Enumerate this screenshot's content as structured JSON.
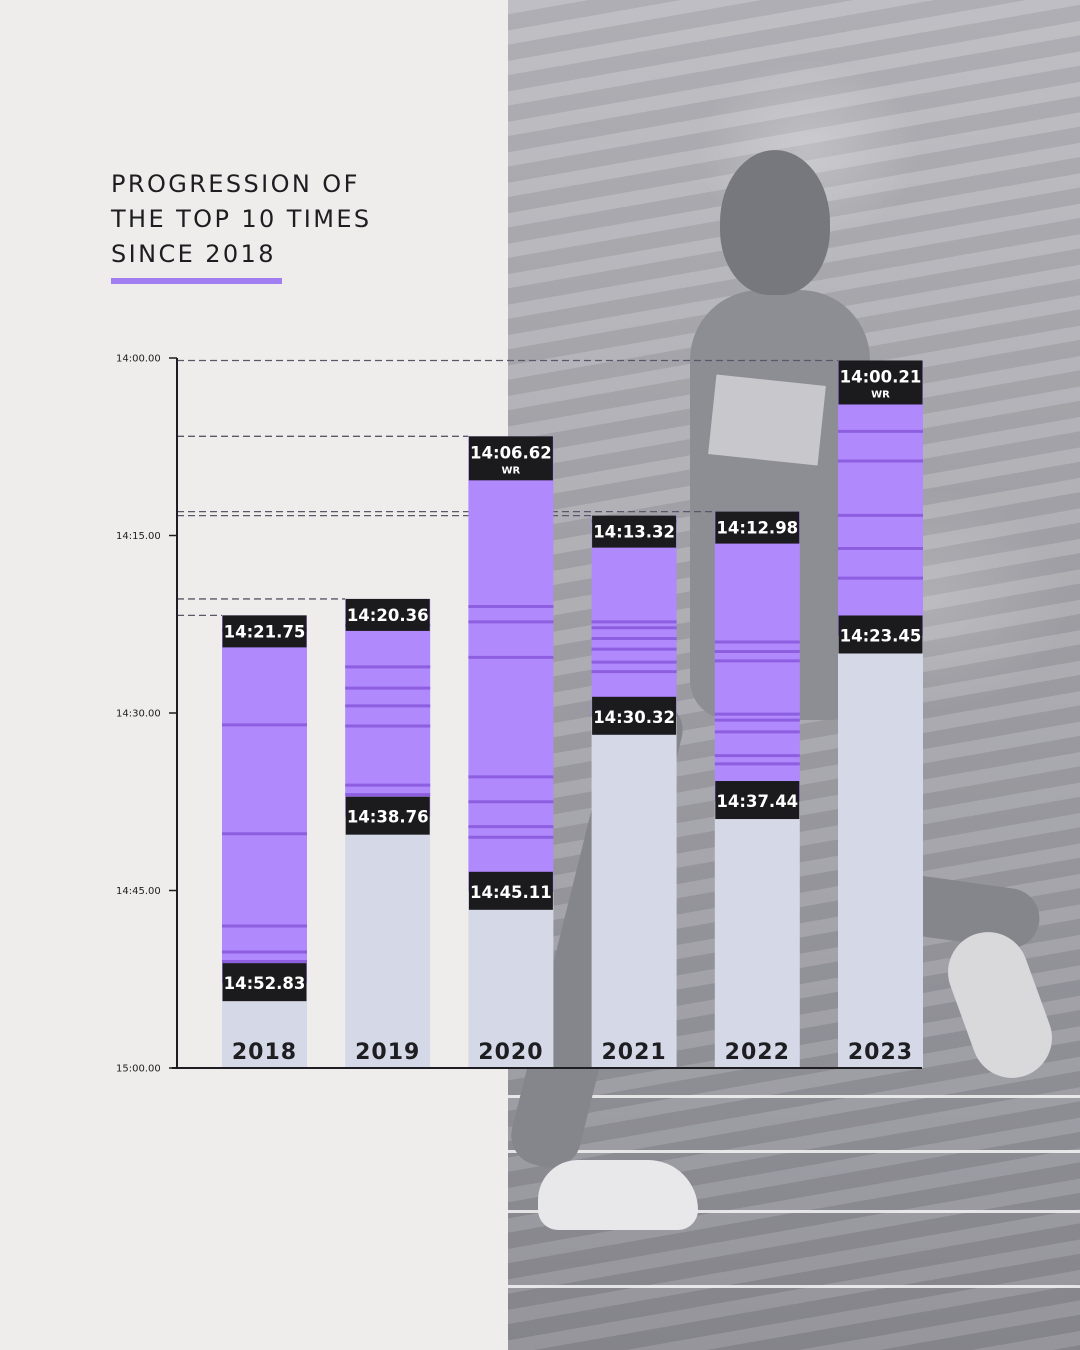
{
  "title_lines": [
    "PROGRESSION OF",
    "THE TOP 10 TIMES",
    "SINCE 2018"
  ],
  "colors": {
    "accent": "#a27ef3",
    "bar_fill": "#b089fc",
    "bar_line": "#8d5fe0",
    "bar_base": "#d5d8e6",
    "label_bg": "#1b1b1d",
    "axis": "#1e1e22",
    "guide": "#5a5868"
  },
  "chart_data": {
    "type": "bar",
    "orientation": "vertical",
    "y_axis_inverted": true,
    "y_ticks": [
      "14:00.00",
      "14:15.00",
      "14:30.00",
      "14:45.00",
      "15:00.00"
    ],
    "y_tick_seconds": [
      840,
      855,
      870,
      885,
      900
    ],
    "ylim_seconds": [
      840,
      900
    ],
    "categories": [
      "2018",
      "2019",
      "2020",
      "2021",
      "2022",
      "2023"
    ],
    "series": [
      {
        "year": "2018",
        "best": "14:21.75",
        "best_s": 861.75,
        "tenth": "14:52.83",
        "tenth_s": 892.83,
        "best_note": "",
        "marks_s": [
          861.75,
          863.0,
          871.0,
          880.2,
          888.0,
          890.2,
          891.0,
          892.83
        ]
      },
      {
        "year": "2019",
        "best": "14:20.36",
        "best_s": 860.36,
        "tenth": "14:38.76",
        "tenth_s": 878.76,
        "best_note": "",
        "marks_s": [
          860.36,
          862.6,
          866.1,
          867.9,
          869.4,
          871.1,
          876.1,
          876.9,
          878.76
        ]
      },
      {
        "year": "2020",
        "best": "14:06.62",
        "best_s": 846.62,
        "tenth": "14:45.11",
        "tenth_s": 885.11,
        "best_note": "WR",
        "marks_s": [
          846.62,
          861.0,
          862.3,
          865.3,
          875.4,
          877.5,
          879.6,
          880.5,
          885.11
        ]
      },
      {
        "year": "2021",
        "best": "14:13.32",
        "best_s": 853.32,
        "tenth": "14:30.32",
        "tenth_s": 870.32,
        "best_note": "",
        "marks_s": [
          853.32,
          853.8,
          862.3,
          862.8,
          863.7,
          864.6,
          865.7,
          866.5,
          870.32
        ]
      },
      {
        "year": "2022",
        "best": "14:12.98",
        "best_s": 852.98,
        "tenth": "14:37.44",
        "tenth_s": 877.44,
        "best_note": "",
        "marks_s": [
          852.98,
          864.0,
          864.8,
          865.6,
          870.1,
          870.6,
          871.6,
          873.6,
          874.3,
          877.44
        ]
      },
      {
        "year": "2023",
        "best": "14:00.21",
        "best_s": 840.21,
        "tenth": "14:23.45",
        "tenth_s": 863.45,
        "best_note": "WR",
        "marks_s": [
          840.21,
          846.2,
          848.7,
          853.3,
          856.1,
          858.6,
          863.45
        ]
      }
    ]
  }
}
